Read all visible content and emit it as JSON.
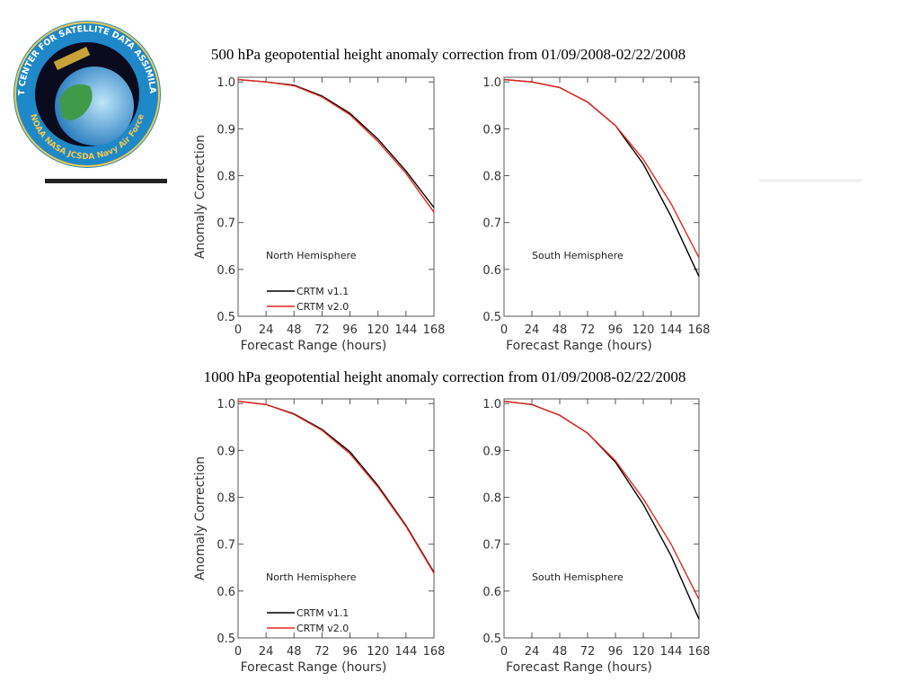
{
  "logo": {
    "ring_text": "JOINT CENTER FOR SATELLITE DATA ASSIMILATION",
    "bottom_labels": [
      "NOAA",
      "NASA",
      "JCSDA",
      "Navy",
      "Air Force"
    ]
  },
  "headings": [
    "500 hPa geopotential height anomaly correction from 01/09/2008-02/22/2008",
    "1000 hPa geopotential height anomaly correction from 01/09/2008-02/22/2008"
  ],
  "chart_data": [
    {
      "type": "line",
      "x_label": "Forecast Range (hours)",
      "y_label": "Anomaly Correction",
      "annotation": "North Hemisphere",
      "x": [
        0,
        24,
        48,
        72,
        96,
        120,
        144,
        168
      ],
      "xlim": [
        0,
        168
      ],
      "xticks": [
        0,
        24,
        48,
        72,
        96,
        120,
        144,
        168
      ],
      "ylim": [
        0.5,
        1.01
      ],
      "yticks": [
        0.5,
        0.6,
        0.7,
        0.8,
        0.9,
        {
          "value": 1,
          "label": "1.0"
        }
      ],
      "series": [
        {
          "name": "CRTM v1.1",
          "color": "#000000",
          "values": [
            1.005,
            1.0,
            0.993,
            0.97,
            0.933,
            0.878,
            0.81,
            0.732
          ]
        },
        {
          "name": "CRTM v2.0",
          "color": "#e8251f",
          "values": [
            1.005,
            1.0,
            0.992,
            0.968,
            0.93,
            0.873,
            0.805,
            0.722
          ]
        }
      ]
    },
    {
      "type": "line",
      "x_label": "Forecast Range (hours)",
      "annotation": "South Hemisphere",
      "x": [
        0,
        24,
        48,
        72,
        96,
        120,
        144,
        168
      ],
      "xlim": [
        0,
        168
      ],
      "xticks": [
        0,
        24,
        48,
        72,
        96,
        120,
        144,
        168
      ],
      "ylim": [
        0.5,
        1.01
      ],
      "yticks": [
        0.5,
        0.6,
        0.7,
        0.8,
        0.9,
        {
          "value": 1,
          "label": "1.0"
        }
      ],
      "series": [
        {
          "color": "#000000",
          "values": [
            1.005,
            1.0,
            0.988,
            0.957,
            0.907,
            0.825,
            0.713,
            0.585
          ]
        },
        {
          "color": "#e8251f",
          "values": [
            1.005,
            1.0,
            0.988,
            0.957,
            0.907,
            0.835,
            0.74,
            0.625
          ]
        }
      ]
    },
    {
      "type": "line",
      "x_label": "Forecast Range (hours)",
      "y_label": "Anomaly Correction",
      "annotation": "North Hemisphere",
      "x": [
        0,
        24,
        48,
        72,
        96,
        120,
        144,
        168
      ],
      "xlim": [
        0,
        168
      ],
      "xticks": [
        0,
        24,
        48,
        72,
        96,
        120,
        144,
        168
      ],
      "ylim": [
        0.5,
        1.01
      ],
      "yticks": [
        0.5,
        0.6,
        0.7,
        0.8,
        0.9,
        {
          "value": 1,
          "label": "1.0"
        }
      ],
      "series": [
        {
          "name": "CRTM v1.1",
          "color": "#000000",
          "values": [
            1.005,
            0.998,
            0.978,
            0.945,
            0.897,
            0.825,
            0.74,
            0.64
          ]
        },
        {
          "name": "CRTM v2.0",
          "color": "#e8251f",
          "values": [
            1.005,
            0.998,
            0.977,
            0.943,
            0.893,
            0.822,
            0.738,
            0.638
          ]
        }
      ]
    },
    {
      "type": "line",
      "x_label": "Forecast Range (hours)",
      "annotation": "South Hemisphere",
      "x": [
        0,
        24,
        48,
        72,
        96,
        120,
        144,
        168
      ],
      "xlim": [
        0,
        168
      ],
      "xticks": [
        0,
        24,
        48,
        72,
        96,
        120,
        144,
        168
      ],
      "ylim": [
        0.5,
        1.01
      ],
      "yticks": [
        0.5,
        0.6,
        0.7,
        0.8,
        0.9,
        {
          "value": 1,
          "label": "1.0"
        }
      ],
      "series": [
        {
          "color": "#000000",
          "values": [
            1.005,
            0.998,
            0.975,
            0.937,
            0.875,
            0.785,
            0.675,
            0.54
          ]
        },
        {
          "color": "#e8251f",
          "values": [
            1.005,
            0.998,
            0.975,
            0.937,
            0.878,
            0.797,
            0.7,
            0.582
          ]
        }
      ]
    }
  ]
}
